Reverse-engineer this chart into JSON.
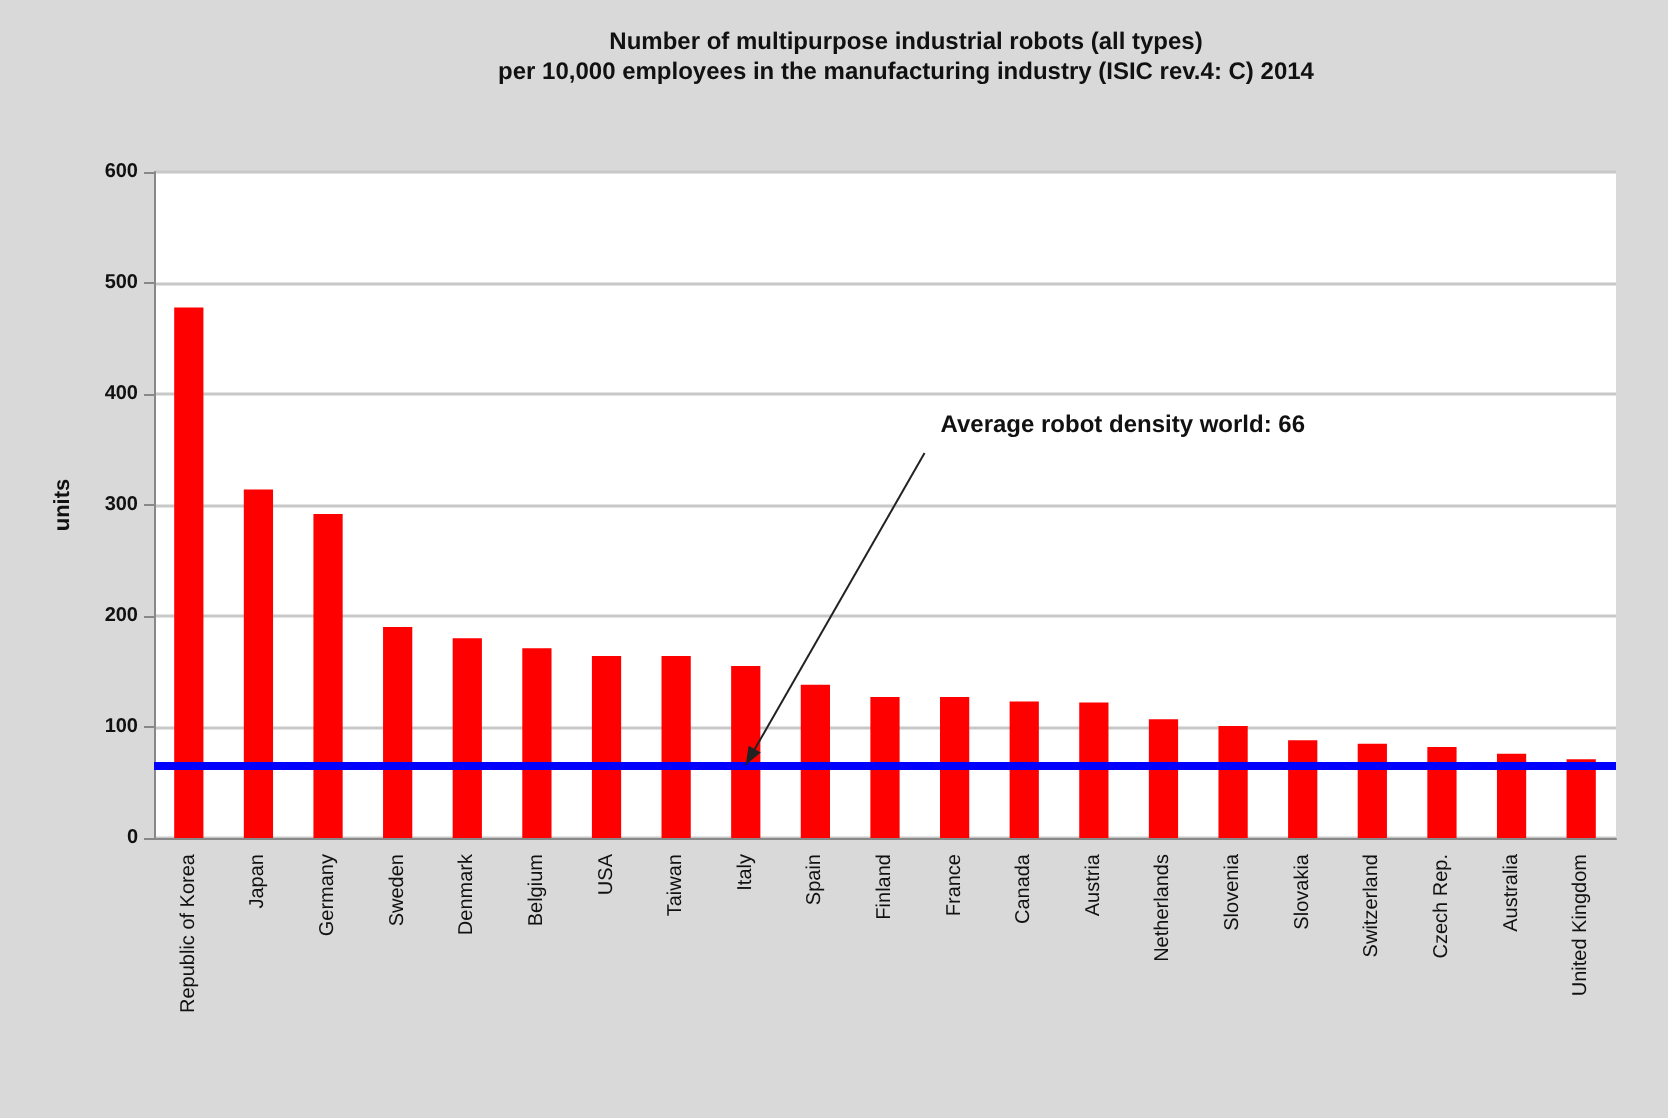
{
  "chart_data": {
    "type": "bar",
    "title": "Number of multipurpose industrial robots (all types)\nper 10,000 employees in the manufacturing industry (ISIC rev.4: C) 2014",
    "ylabel": "units",
    "categories": [
      "Republic of Korea",
      "Japan",
      "Germany",
      "Sweden",
      "Denmark",
      "Belgium",
      "USA",
      "Taiwan",
      "Italy",
      "Spain",
      "Finland",
      "France",
      "Canada",
      "Austria",
      "Netherlands",
      "Slovenia",
      "Slovakia",
      "Switzerland",
      "Czech Rep.",
      "Australia",
      "United Kingdom"
    ],
    "values": [
      478,
      314,
      292,
      190,
      180,
      171,
      164,
      164,
      155,
      138,
      127,
      127,
      123,
      122,
      107,
      101,
      88,
      85,
      82,
      76,
      71
    ],
    "color": "#ff0000",
    "ylim": [
      0,
      600
    ],
    "yticks": [
      0,
      100,
      200,
      300,
      400,
      500,
      600
    ],
    "grid": "y",
    "annotations": [
      {
        "text": "Average robot density world: 66",
        "x": "Italy",
        "y": 66
      }
    ],
    "ref_lines": [
      {
        "axis": "y",
        "value": 66,
        "color": "#0000ff"
      }
    ]
  }
}
